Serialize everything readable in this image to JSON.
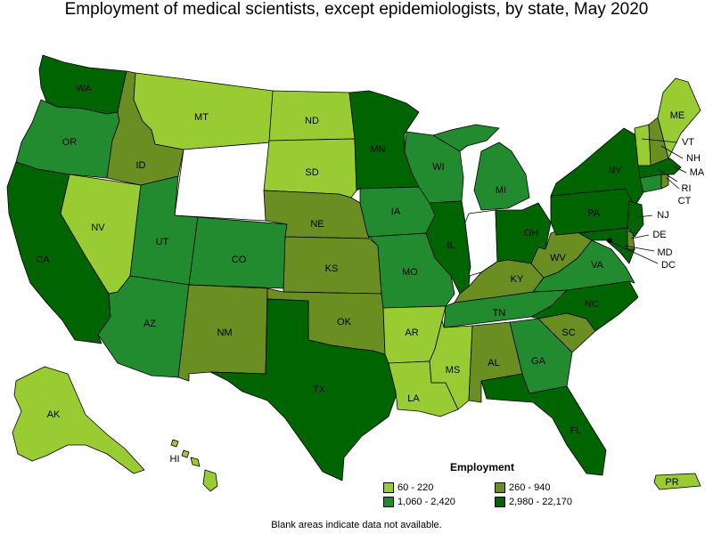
{
  "title": "Employment of medical scientists, except epidemiologists, by state, May 2020",
  "note": "Blank areas indicate data not available.",
  "legend": {
    "title": "Employment",
    "items": [
      {
        "label": "60 - 220",
        "color": "#99cc33"
      },
      {
        "label": "260 - 940",
        "color": "#6b8e23"
      },
      {
        "label": "1,060 - 2,420",
        "color": "#228b30"
      },
      {
        "label": "2,980 - 22,170",
        "color": "#006400"
      }
    ]
  },
  "colors": {
    "c1": "#99cc33",
    "c2": "#6b8e23",
    "c3": "#228b30",
    "c4": "#006400",
    "na": "#ffffff"
  },
  "states": {
    "WA": "c4",
    "OR": "c3",
    "CA": "c4",
    "NV": "c1",
    "ID": "c2",
    "MT": "c1",
    "WY": "na",
    "UT": "c3",
    "AZ": "c3",
    "CO": "c3",
    "NM": "c2",
    "ND": "c1",
    "SD": "c1",
    "NE": "c2",
    "KS": "c2",
    "OK": "c2",
    "TX": "c4",
    "MN": "c4",
    "IA": "c3",
    "MO": "c3",
    "AR": "c1",
    "LA": "c1",
    "WI": "c3",
    "IL": "c4",
    "MS": "c1",
    "MI": "c3",
    "IN": "na",
    "OH": "c4",
    "KY": "c2",
    "TN": "c3",
    "AL": "c2",
    "GA": "c3",
    "FL": "c4",
    "SC": "c2",
    "NC": "c4",
    "VA": "c3",
    "WV": "c2",
    "PA": "c4",
    "NY": "c4",
    "VT": "c1",
    "NH": "c2",
    "ME": "c1",
    "MA": "c4",
    "RI": "c2",
    "CT": "c3",
    "NJ": "c4",
    "DE": "c2",
    "MD": "c4",
    "DC": "c4",
    "AK": "c1",
    "HI": "c1",
    "PR": "c1"
  },
  "labels": {
    "WA": "WA",
    "OR": "OR",
    "CA": "CA",
    "NV": "NV",
    "ID": "ID",
    "MT": "MT",
    "UT": "UT",
    "AZ": "AZ",
    "CO": "CO",
    "NM": "NM",
    "ND": "ND",
    "SD": "SD",
    "NE": "NE",
    "KS": "KS",
    "OK": "OK",
    "TX": "TX",
    "MN": "MN",
    "IA": "IA",
    "MO": "MO",
    "AR": "AR",
    "LA": "LA",
    "WI": "WI",
    "IL": "IL",
    "MS": "MS",
    "MI": "MI",
    "OH": "OH",
    "KY": "KY",
    "TN": "TN",
    "AL": "AL",
    "GA": "GA",
    "FL": "FL",
    "SC": "SC",
    "NC": "NC",
    "VA": "VA",
    "WV": "WV",
    "PA": "PA",
    "NY": "NY",
    "ME": "ME",
    "VT": "VT",
    "NH": "NH",
    "MA": "MA",
    "RI": "RI",
    "CT": "CT",
    "NJ": "NJ",
    "DE": "DE",
    "MD": "MD",
    "DC": "DC",
    "AK": "AK",
    "HI": "HI",
    "PR": "PR"
  }
}
